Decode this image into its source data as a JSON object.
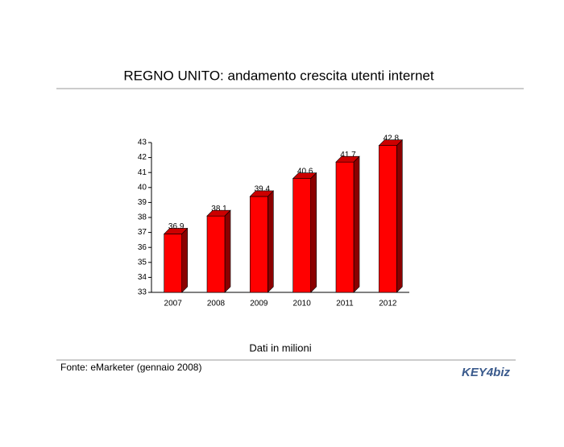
{
  "chart_data": {
    "type": "bar",
    "title": "REGNO UNITO: andamento crescita utenti internet",
    "categories": [
      "2007",
      "2008",
      "2009",
      "2010",
      "2011",
      "2012"
    ],
    "values": [
      36.9,
      38.1,
      39.4,
      40.6,
      41.7,
      42.8
    ],
    "color": "#ff0000",
    "ylim": [
      33,
      43
    ],
    "yticks": [
      33,
      34,
      35,
      36,
      37,
      38,
      39,
      40,
      41,
      42,
      43
    ],
    "note": "Dati in milioni",
    "source": "Fonte: eMarketer (gennaio 2008)",
    "logo": "KEY4biz"
  }
}
